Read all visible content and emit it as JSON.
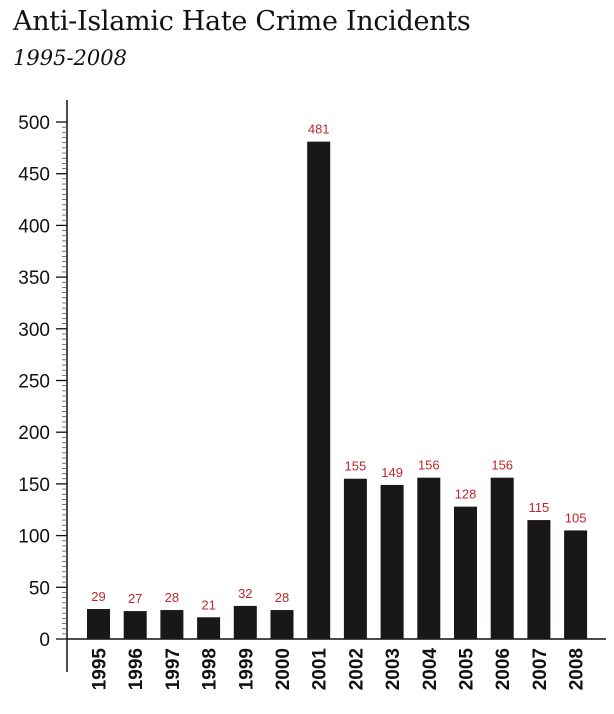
{
  "chart_data": {
    "type": "bar",
    "title": "Anti-Islamic Hate Crime Incidents",
    "subtitle": "1995-2008",
    "xlabel": "",
    "ylabel": "",
    "categories": [
      "1995",
      "1996",
      "1997",
      "1998",
      "1999",
      "2000",
      "2001",
      "2002",
      "2003",
      "2004",
      "2005",
      "2006",
      "2007",
      "2008"
    ],
    "values": [
      29,
      27,
      28,
      21,
      32,
      28,
      481,
      155,
      149,
      156,
      128,
      156,
      115,
      105
    ],
    "ylim": [
      0,
      500
    ],
    "yticks": [
      "0",
      "50",
      "100",
      "150",
      "200",
      "250",
      "300",
      "350",
      "400",
      "450",
      "500"
    ],
    "minor_tick_step": 5,
    "grid": false,
    "legend": "none",
    "bar_color": "#1a1718",
    "label_color": "#c0272d"
  }
}
